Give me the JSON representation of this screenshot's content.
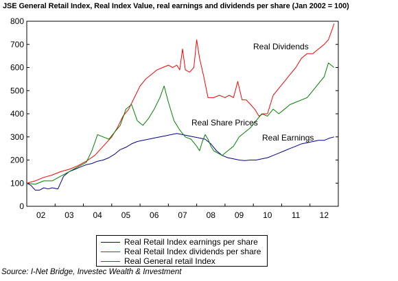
{
  "chart_data": {
    "type": "line",
    "title": "JSE General Retail Index, Real Index Value, real earnings and dividends per share (Jan 2002 = 100)",
    "xlabel": "",
    "ylabel": "",
    "ylim": [
      0,
      800
    ],
    "yticks": [
      "0",
      "100",
      "200",
      "300",
      "400",
      "500",
      "600",
      "700",
      "800"
    ],
    "xlim": [
      2002.0,
      2013.0
    ],
    "xticks": [
      "02",
      "03",
      "04",
      "05",
      "06",
      "07",
      "08",
      "09",
      "10",
      "11",
      "12"
    ],
    "grid": false,
    "legend_position": "bottom-center",
    "series": [
      {
        "name": "Real Retail Index earnings per share",
        "label": "Real Earnings",
        "color": "#00008b",
        "x": [
          2002.0,
          2002.15,
          2002.3,
          2002.45,
          2002.6,
          2002.75,
          2002.9,
          2003.1,
          2003.3,
          2003.5,
          2003.7,
          2003.9,
          2004.1,
          2004.3,
          2004.5,
          2004.7,
          2004.9,
          2005.1,
          2005.3,
          2005.5,
          2005.7,
          2005.9,
          2006.1,
          2006.3,
          2006.5,
          2006.7,
          2006.9,
          2007.1,
          2007.3,
          2007.5,
          2007.7,
          2007.9,
          2008.1,
          2008.3,
          2008.5,
          2008.7,
          2008.9,
          2009.1,
          2009.3,
          2009.5,
          2009.7,
          2009.9,
          2010.1,
          2010.3,
          2010.5,
          2010.7,
          2010.9,
          2011.1,
          2011.3,
          2011.5,
          2011.7,
          2011.9,
          2012.1,
          2012.3,
          2012.5,
          2012.7,
          2012.85
        ],
        "values": [
          100,
          90,
          70,
          70,
          80,
          75,
          80,
          75,
          130,
          150,
          160,
          170,
          180,
          185,
          195,
          200,
          210,
          225,
          245,
          255,
          270,
          280,
          285,
          290,
          295,
          300,
          305,
          310,
          315,
          310,
          305,
          300,
          295,
          290,
          270,
          240,
          220,
          210,
          205,
          200,
          198,
          200,
          200,
          205,
          210,
          220,
          230,
          240,
          250,
          260,
          270,
          275,
          280,
          285,
          285,
          295,
          300
        ]
      },
      {
        "name": "Real Retail Index dividends per share",
        "label": "Real Dividends",
        "color": "#ff0000",
        "x": [
          2002.0,
          2002.3,
          2002.6,
          2002.9,
          2003.2,
          2003.5,
          2003.8,
          2004.1,
          2004.4,
          2004.7,
          2005.0,
          2005.2,
          2005.4,
          2005.6,
          2005.8,
          2006.0,
          2006.2,
          2006.4,
          2006.6,
          2006.8,
          2007.0,
          2007.15,
          2007.3,
          2007.4,
          2007.5,
          2007.6,
          2007.75,
          2007.9,
          2008.0,
          2008.1,
          2008.25,
          2008.4,
          2008.6,
          2008.8,
          2009.0,
          2009.15,
          2009.3,
          2009.45,
          2009.6,
          2009.75,
          2009.9,
          2010.05,
          2010.2,
          2010.35,
          2010.5,
          2010.7,
          2010.9,
          2011.1,
          2011.3,
          2011.5,
          2011.7,
          2011.9,
          2012.1,
          2012.3,
          2012.5,
          2012.65,
          2012.8,
          2012.85
        ],
        "values": [
          100,
          110,
          125,
          135,
          150,
          160,
          175,
          195,
          220,
          260,
          300,
          340,
          390,
          420,
          470,
          520,
          550,
          570,
          590,
          600,
          610,
          600,
          610,
          590,
          680,
          590,
          580,
          600,
          720,
          640,
          560,
          470,
          470,
          480,
          470,
          480,
          470,
          540,
          460,
          460,
          440,
          420,
          390,
          400,
          400,
          480,
          510,
          540,
          570,
          600,
          640,
          660,
          660,
          680,
          700,
          720,
          770,
          790
        ]
      },
      {
        "name": "Real General retail Index",
        "label": "Real Share Prices",
        "color": "#008000",
        "x": [
          2002.0,
          2002.3,
          2002.6,
          2002.9,
          2003.2,
          2003.5,
          2003.8,
          2004.1,
          2004.3,
          2004.5,
          2004.7,
          2004.9,
          2005.1,
          2005.3,
          2005.5,
          2005.7,
          2005.9,
          2006.1,
          2006.3,
          2006.5,
          2006.7,
          2006.85,
          2007.0,
          2007.2,
          2007.4,
          2007.6,
          2007.8,
          2008.0,
          2008.1,
          2008.2,
          2008.3,
          2008.4,
          2008.5,
          2008.6,
          2008.75,
          2008.9,
          2009.1,
          2009.3,
          2009.5,
          2009.7,
          2009.9,
          2010.1,
          2010.3,
          2010.5,
          2010.7,
          2010.9,
          2011.1,
          2011.3,
          2011.5,
          2011.7,
          2011.9,
          2012.1,
          2012.3,
          2012.5,
          2012.65,
          2012.75,
          2012.85
        ],
        "values": [
          100,
          95,
          110,
          110,
          130,
          150,
          170,
          190,
          240,
          310,
          300,
          290,
          320,
          350,
          420,
          440,
          370,
          350,
          380,
          420,
          470,
          520,
          450,
          370,
          330,
          300,
          290,
          260,
          240,
          280,
          310,
          290,
          260,
          240,
          230,
          220,
          240,
          260,
          300,
          320,
          340,
          370,
          400,
          390,
          420,
          400,
          420,
          440,
          450,
          460,
          470,
          500,
          530,
          560,
          620,
          610,
          600
        ]
      }
    ]
  },
  "annotations": {
    "dividends": "Real Dividends",
    "share_prices": "Real Share Prices",
    "earnings": "Real Earnings"
  },
  "source": "Source: I-Net Bridge, Investec Wealth & Investment"
}
